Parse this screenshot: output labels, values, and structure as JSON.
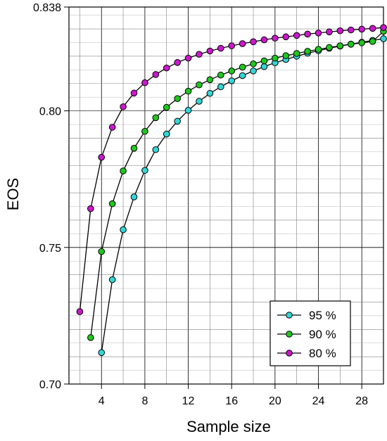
{
  "chart_data": {
    "type": "line",
    "xlabel": "Sample size",
    "ylabel": "EOS",
    "xlim": [
      1,
      30
    ],
    "ylim": [
      0.7,
      0.838
    ],
    "x_ticks": [
      4,
      8,
      12,
      16,
      20,
      24,
      28
    ],
    "x_tick_labels": [
      "4",
      "8",
      "12",
      "16",
      "20",
      "24",
      "28"
    ],
    "y_ticks": [
      0.7,
      0.75,
      0.8,
      0.838
    ],
    "y_tick_labels": [
      "0.70",
      "0.75",
      "0.80",
      "0.838"
    ],
    "grid": true,
    "legend_position": "bottom-right",
    "series": [
      {
        "name": "95 %",
        "color": "#33d6d6",
        "x": [
          4,
          5,
          6,
          7,
          8,
          9,
          10,
          11,
          12,
          13,
          14,
          15,
          16,
          17,
          18,
          19,
          20,
          21,
          22,
          23,
          24,
          25,
          26,
          27,
          28,
          29,
          30
        ],
        "y": [
          0.7115,
          0.7382,
          0.7565,
          0.7685,
          0.7782,
          0.7858,
          0.7915,
          0.7962,
          0.8002,
          0.8035,
          0.8064,
          0.8088,
          0.811,
          0.8129,
          0.8146,
          0.8162,
          0.8176,
          0.8188,
          0.82,
          0.8211,
          0.822,
          0.8229,
          0.8237,
          0.8244,
          0.8251,
          0.8258,
          0.8264
        ]
      },
      {
        "name": "90 %",
        "color": "#1ec81e",
        "x": [
          3,
          4,
          5,
          6,
          7,
          8,
          9,
          10,
          11,
          12,
          13,
          14,
          15,
          16,
          17,
          18,
          19,
          20,
          21,
          22,
          23,
          24,
          25,
          26,
          27,
          28,
          29,
          30
        ],
        "y": [
          0.717,
          0.7485,
          0.766,
          0.778,
          0.7863,
          0.7925,
          0.7975,
          0.8013,
          0.8045,
          0.8072,
          0.8095,
          0.8114,
          0.8131,
          0.8146,
          0.816,
          0.8172,
          0.8183,
          0.8193,
          0.8202,
          0.821,
          0.8218,
          0.8225,
          0.8232,
          0.8238,
          0.8244,
          0.8249,
          0.8254,
          0.8291
        ]
      },
      {
        "name": "80 %",
        "color": "#cc18cc",
        "x": [
          2,
          3,
          4,
          5,
          6,
          7,
          8,
          9,
          10,
          11,
          12,
          13,
          14,
          15,
          16,
          17,
          18,
          19,
          20,
          21,
          22,
          23,
          24,
          25,
          26,
          27,
          28,
          29,
          30
        ],
        "y": [
          0.7265,
          0.7642,
          0.783,
          0.794,
          0.8015,
          0.8065,
          0.8103,
          0.8133,
          0.8157,
          0.8177,
          0.8193,
          0.8207,
          0.8219,
          0.8229,
          0.8238,
          0.8246,
          0.8253,
          0.826,
          0.8266,
          0.8271,
          0.8276,
          0.8281,
          0.8285,
          0.8289,
          0.8293,
          0.8296,
          0.8299,
          0.8302,
          0.8305
        ]
      }
    ]
  }
}
